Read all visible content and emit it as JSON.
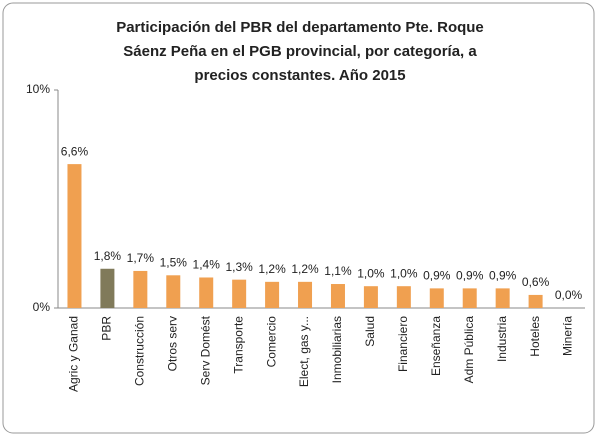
{
  "chart_data": {
    "type": "bar",
    "title": [
      "Participación del PBR del departamento Pte. Roque",
      "Sáenz Peña  en el PGB provincial, por categoría, a",
      "precios constantes. Año 2015"
    ],
    "categories": [
      "Agric y Ganad",
      "PBR",
      "Construcción",
      "Otros serv",
      "Serv Domést",
      "Transporte",
      "Comercio",
      "Elect, gas y...",
      "Inmobiliarias",
      "Salud",
      "Financiero",
      "Enseñanza",
      "Adm Pública",
      "Industria",
      "Hoteles",
      "Minería"
    ],
    "values": [
      6.6,
      1.8,
      1.7,
      1.5,
      1.4,
      1.3,
      1.2,
      1.2,
      1.1,
      1.0,
      1.0,
      0.9,
      0.9,
      0.9,
      0.6,
      0.0
    ],
    "value_labels": [
      "6,6%",
      "1,8%",
      "1,7%",
      "1,5%",
      "1,4%",
      "1,3%",
      "1,2%",
      "1,2%",
      "1,1%",
      "1,0%",
      "1,0%",
      "0,9%",
      "0,9%",
      "0,9%",
      "0,6%",
      "0,0%"
    ],
    "colors": [
      "#f0a050",
      "#807a5a",
      "#f0a050",
      "#f0a050",
      "#f0a050",
      "#f0a050",
      "#f0a050",
      "#f0a050",
      "#f0a050",
      "#f0a050",
      "#f0a050",
      "#f0a050",
      "#f0a050",
      "#f0a050",
      "#f0a050",
      "#f0a050"
    ],
    "ylim": [
      0,
      10
    ],
    "yticks": [
      {
        "value": 0,
        "label": "0%"
      },
      {
        "value": 10,
        "label": "10%"
      }
    ],
    "grid": false
  }
}
